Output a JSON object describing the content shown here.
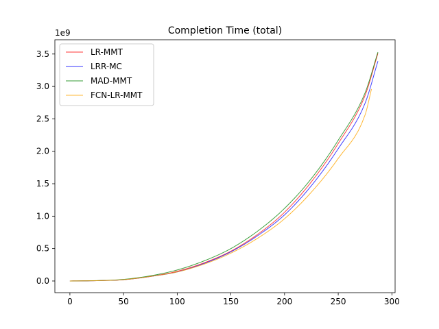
{
  "chart_data": {
    "type": "line",
    "title": "Completion Time (total)",
    "xlabel": "",
    "ylabel": "",
    "y_offset_label": "1e9",
    "xlim": [
      -14,
      303
    ],
    "ylim": [
      -0.18,
      3.72
    ],
    "x_ticks": [
      0,
      50,
      100,
      150,
      200,
      250,
      300
    ],
    "y_ticks": [
      0.0,
      0.5,
      1.0,
      1.5,
      2.0,
      2.5,
      3.0,
      3.5
    ],
    "x_tick_labels": [
      "0",
      "50",
      "100",
      "150",
      "200",
      "250",
      "300"
    ],
    "y_tick_labels": [
      "0.0",
      "0.5",
      "1.0",
      "1.5",
      "2.0",
      "2.5",
      "3.0",
      "3.5"
    ],
    "grid": false,
    "legend_position": "upper-left",
    "series": [
      {
        "name": "LR-MMT",
        "color": "#ff0000",
        "x": [
          0,
          25,
          50,
          75,
          100,
          125,
          150,
          175,
          200,
          225,
          250,
          275,
          287
        ],
        "y": [
          0.0,
          0.005,
          0.02,
          0.07,
          0.15,
          0.28,
          0.46,
          0.72,
          1.06,
          1.53,
          2.12,
          2.86,
          3.51
        ]
      },
      {
        "name": "LRR-MC",
        "color": "#0000ff",
        "x": [
          0,
          25,
          50,
          75,
          100,
          125,
          150,
          175,
          200,
          225,
          250,
          275,
          287
        ],
        "y": [
          0.0,
          0.005,
          0.02,
          0.07,
          0.14,
          0.27,
          0.45,
          0.7,
          1.02,
          1.47,
          2.04,
          2.74,
          3.39
        ]
      },
      {
        "name": "MAD-MMT",
        "color": "#008000",
        "x": [
          0,
          25,
          50,
          75,
          100,
          125,
          150,
          175,
          200,
          225,
          250,
          275,
          287
        ],
        "y": [
          0.0,
          0.006,
          0.025,
          0.08,
          0.17,
          0.31,
          0.5,
          0.77,
          1.12,
          1.58,
          2.17,
          2.9,
          3.53
        ]
      },
      {
        "name": "FCN-LR-MMT",
        "color": "#ffa500",
        "x": [
          0,
          25,
          50,
          75,
          100,
          125,
          150,
          175,
          200,
          225,
          250,
          275,
          281
        ],
        "y": [
          0.0,
          0.005,
          0.02,
          0.07,
          0.14,
          0.26,
          0.43,
          0.66,
          0.96,
          1.37,
          1.89,
          2.56,
          2.96
        ]
      }
    ]
  }
}
